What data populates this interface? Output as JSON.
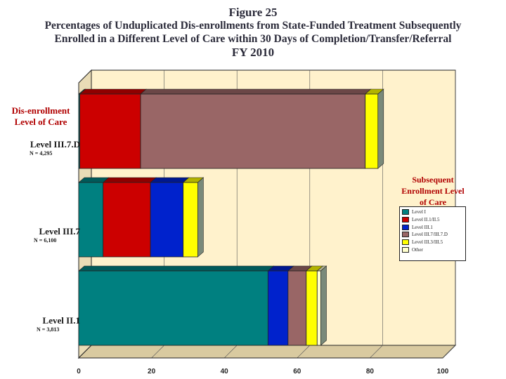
{
  "titles": {
    "figure": "Figure 25",
    "line1": "Percentages of Unduplicated Dis-enrollments from State-Funded Treatment Subsequently",
    "line2": "Enrolled in a Different Level of Care within 30 Days of Completion/Transfer/Referral",
    "line3": "FY 2010"
  },
  "chart_data": {
    "type": "bar",
    "orientation": "horizontal",
    "stacked": true,
    "xlim": [
      0,
      100
    ],
    "xticks": [
      0,
      20,
      40,
      60,
      80,
      100
    ],
    "ylabel": "Dis-enrollment Level of Care",
    "legend_title": "Subsequent Enrollment Level of Care",
    "categories": [
      {
        "name": "Level III.7.D",
        "n": "N = 4,295"
      },
      {
        "name": "Level III.7",
        "n": "N = 6,100"
      },
      {
        "name": "Level II.1",
        "n": "N = 3,813"
      }
    ],
    "series": [
      {
        "name": "Level I",
        "color": "#008080",
        "values": [
          0.3,
          6.7,
          52.0
        ]
      },
      {
        "name": "Level II.1/II.5",
        "color": "#cc0000",
        "values": [
          16.7,
          13.0,
          0
        ]
      },
      {
        "name": "Level III.1",
        "color": "#0022cc",
        "values": [
          0,
          9.0,
          5.5
        ]
      },
      {
        "name": "Level III.7/III.7.D",
        "color": "#996666",
        "values": [
          61.7,
          0,
          5.0
        ]
      },
      {
        "name": "Level III.3/III.5",
        "color": "#ffff00",
        "values": [
          3.5,
          4.0,
          3.0
        ]
      },
      {
        "name": "Other",
        "color": "#ffffcc",
        "values": [
          0,
          0,
          1.0
        ]
      }
    ]
  }
}
